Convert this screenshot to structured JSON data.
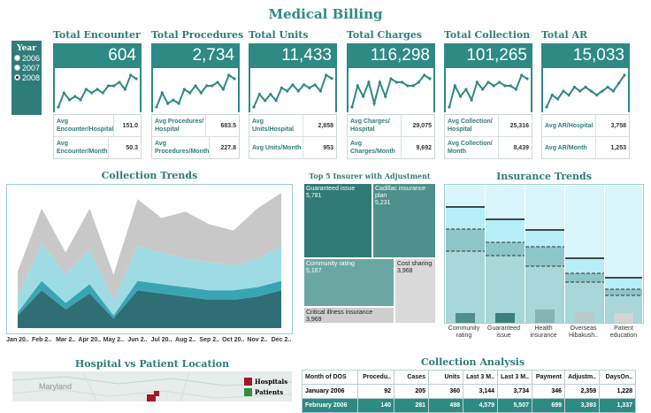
{
  "title": "Medical Billing",
  "year_filter": {
    "heading": "Year",
    "options": [
      "2006",
      "2007",
      "2008"
    ],
    "selected": "2008"
  },
  "kpis": [
    {
      "label": "Total Encounter",
      "value": "604",
      "spark": [
        4,
        8,
        6,
        7,
        6,
        9,
        8,
        9,
        8,
        10,
        10,
        11,
        9,
        13,
        12
      ],
      "rows": [
        {
          "label": "Avg Encounter/Hospital",
          "value": "151.0"
        },
        {
          "label": "Avg Encounter/Month",
          "value": "50.3"
        }
      ]
    },
    {
      "label": "Total Procedures",
      "value": "2,734",
      "spark": [
        5,
        9,
        6,
        7,
        6,
        10,
        9,
        11,
        9,
        11,
        11,
        12,
        10,
        14,
        13
      ],
      "rows": [
        {
          "label": "Avg Procedures/ Hospital",
          "value": "683.5"
        },
        {
          "label": "Avg Procedures/Month",
          "value": "227.8"
        }
      ]
    },
    {
      "label": "Total Units",
      "value": "11,433",
      "spark": [
        4,
        8,
        6,
        8,
        6,
        10,
        9,
        11,
        9,
        11,
        10,
        11,
        9,
        14,
        13
      ],
      "rows": [
        {
          "label": "Avg Units/Hospital",
          "value": "2,858"
        },
        {
          "label": "Avg Units/Month",
          "value": "953"
        }
      ]
    },
    {
      "label": "Total Charges",
      "value": "116,298",
      "spark": [
        5,
        11,
        8,
        12,
        6,
        12,
        8,
        13,
        12,
        12,
        11,
        11,
        12,
        14,
        13
      ],
      "rows": [
        {
          "label": "Avg Charges/ Hospital",
          "value": "29,075"
        },
        {
          "label": "Avg Charges/Month",
          "value": "9,692"
        }
      ]
    },
    {
      "label": "Total Collection",
      "value": "101,265",
      "spark": [
        4,
        10,
        7,
        9,
        6,
        11,
        9,
        11,
        10,
        11,
        10,
        10,
        9,
        13,
        12
      ],
      "rows": [
        {
          "label": "Avg Collection/ Hospital",
          "value": "25,316"
        },
        {
          "label": "Avg Collection/ Month",
          "value": "8,439"
        }
      ]
    },
    {
      "label": "Total AR",
      "value": "15,033",
      "spark": [
        5,
        8,
        7,
        9,
        8,
        10,
        9,
        10,
        9,
        8,
        9,
        10,
        9,
        11,
        13
      ],
      "rows": [
        {
          "label": "Avg AR/Hospital",
          "value": "3,758"
        },
        {
          "label": "Avg AR/Month",
          "value": "1,253"
        }
      ]
    }
  ],
  "collection_trends": {
    "title": "Collection Trends",
    "x_labels": [
      "Jan 20..",
      "Feb 2..",
      "Mar 2..",
      "Apr 20..",
      "May 2..",
      "Jun 2..",
      "Jul 20..",
      "Aug 2..",
      "Sep 2..",
      "Oct 20..",
      "Nov 2..",
      "Dec 2.."
    ],
    "series": [
      {
        "color": "#2f6e75",
        "values": [
          4,
          12,
          6,
          11,
          3,
          12,
          11,
          10,
          9,
          9,
          10,
          12
        ]
      },
      {
        "color": "#3aa5b2",
        "values": [
          1,
          3,
          2,
          3,
          1,
          3,
          3,
          3,
          3,
          3,
          3,
          3
        ]
      },
      {
        "color": "#9edbe5",
        "values": [
          5,
          12,
          9,
          11,
          5,
          11,
          10,
          9,
          9,
          8,
          9,
          11
        ]
      },
      {
        "color": "#c8c8c8",
        "values": [
          8,
          11,
          7,
          13,
          8,
          15,
          11,
          15,
          12,
          11,
          16,
          17
        ]
      }
    ]
  },
  "top5": {
    "title": "Top 5 Insurer with Adjustment",
    "cells": [
      {
        "name": "Guaranteed issue",
        "value": "5,781",
        "color": "#2f7a76"
      },
      {
        "name": "Cadillac insurance plan",
        "value": "5,231",
        "color": "#4d908c"
      },
      {
        "name": "Community rating",
        "value": "5,167",
        "color": "#6aa7a2"
      },
      {
        "name": "Cost sharing",
        "value": "3,968",
        "color": "#d6d6d6"
      },
      {
        "name": "Critical illness insurance",
        "value": "3,969",
        "color": "#cfcfcf"
      }
    ]
  },
  "insurance_trends": {
    "title": "Insurance Trends",
    "categories": [
      "Community rating",
      "Guaranteed issue",
      "Health insurance",
      "Overseas Hibakush..",
      "Patient education"
    ]
  },
  "hospital_map": {
    "title": "Hospital vs Patient Location",
    "region_label": "Maryland",
    "legend": [
      {
        "label": "Hospitals",
        "color": "#a4162b"
      },
      {
        "label": "Patients",
        "color": "#2c8f3e"
      }
    ]
  },
  "collection_analysis": {
    "title": "Collection Analysis",
    "columns": [
      "Month of DOS",
      "Procedu..",
      "Cases",
      "Units",
      "Last 3 M..",
      "Last 3 M..",
      "Payment",
      "Adjustm..",
      "DaysOn.."
    ],
    "rows": [
      [
        "January 2006",
        "92",
        "205",
        "360",
        "3,144",
        "3,734",
        "346",
        "2,359",
        "1,228"
      ],
      [
        "February 2006",
        "140",
        "281",
        "498",
        "4,579",
        "5,507",
        "699",
        "3,393",
        "1,337"
      ]
    ]
  }
}
